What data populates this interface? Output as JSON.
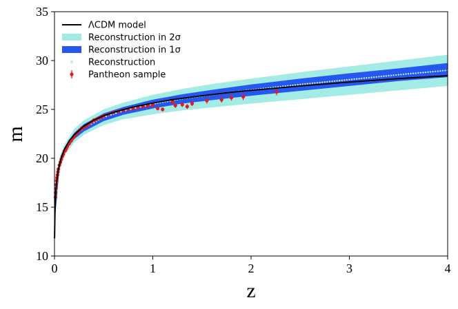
{
  "chart_data": {
    "type": "line",
    "xlabel": "z",
    "ylabel": "m",
    "xlim": [
      0,
      4
    ],
    "ylim": [
      10,
      35
    ],
    "xticks": [
      "0",
      "1",
      "2",
      "3",
      "4"
    ],
    "yticks": [
      "10",
      "15",
      "20",
      "25",
      "30",
      "35"
    ],
    "grid": false,
    "legend_position": "top-left",
    "colors": {
      "model": "#000000",
      "band_2sigma": "#a3ece5",
      "band_1sigma": "#2458f0",
      "reconstruction": "#bfeeee",
      "pantheon": "#e8181c"
    },
    "legend": [
      {
        "key": "model",
        "label": "ΛCDM model",
        "marker": "line"
      },
      {
        "key": "band_2sigma",
        "label": "Reconstruction in 2σ",
        "marker": "patch"
      },
      {
        "key": "band_1sigma",
        "label": "Reconstruction in 1σ",
        "marker": "patch"
      },
      {
        "key": "reconstruction",
        "label": "Reconstruction",
        "marker": "dot"
      },
      {
        "key": "pantheon",
        "label": "Pantheon sample",
        "marker": "errorbar"
      }
    ],
    "series": [
      {
        "name": "ΛCDM model",
        "x": [
          0.001,
          0.005,
          0.01,
          0.02,
          0.04,
          0.07,
          0.1,
          0.15,
          0.2,
          0.3,
          0.4,
          0.5,
          0.6,
          0.8,
          1.0,
          1.2,
          1.5,
          1.8,
          2.0,
          2.5,
          3.0,
          3.5,
          4.0
        ],
        "y": [
          11.8,
          14.5,
          16.0,
          17.4,
          18.9,
          20.1,
          20.9,
          21.8,
          22.4,
          23.3,
          23.9,
          24.35,
          24.7,
          25.25,
          25.65,
          26.0,
          26.4,
          26.75,
          26.95,
          27.4,
          27.8,
          28.15,
          28.45
        ]
      },
      {
        "name": "Reconstruction in 2σ",
        "x": [
          0.0,
          0.05,
          0.1,
          0.2,
          0.3,
          0.5,
          0.7,
          1.0,
          1.3,
          1.6,
          2.0,
          2.5,
          3.0,
          3.5,
          4.0
        ],
        "lower": [
          12.8,
          18.7,
          20.3,
          21.6,
          22.4,
          23.4,
          24.0,
          24.5,
          24.9,
          25.2,
          25.6,
          26.05,
          26.5,
          26.95,
          27.4
        ],
        "upper": [
          15.5,
          20.0,
          21.4,
          23.0,
          23.9,
          25.0,
          25.7,
          26.5,
          27.1,
          27.6,
          28.15,
          28.8,
          29.4,
          30.0,
          30.6
        ]
      },
      {
        "name": "Reconstruction in 1σ",
        "x": [
          0.0,
          0.05,
          0.1,
          0.2,
          0.3,
          0.5,
          0.7,
          1.0,
          1.3,
          1.6,
          2.0,
          2.5,
          3.0,
          3.5,
          4.0
        ],
        "lower": [
          13.3,
          18.9,
          20.6,
          21.95,
          22.75,
          23.8,
          24.45,
          25.1,
          25.6,
          25.95,
          26.4,
          26.9,
          27.4,
          27.9,
          28.3
        ],
        "upper": [
          15.0,
          19.7,
          21.1,
          22.6,
          23.5,
          24.6,
          25.25,
          26.0,
          26.55,
          27.0,
          27.55,
          28.15,
          28.7,
          29.2,
          29.75
        ]
      },
      {
        "name": "Reconstruction",
        "x": [
          0.0,
          0.05,
          0.1,
          0.2,
          0.3,
          0.5,
          0.7,
          1.0,
          1.3,
          1.6,
          2.0,
          2.5,
          3.0,
          3.5,
          4.0
        ],
        "y": [
          14.2,
          19.3,
          20.85,
          22.3,
          23.1,
          24.2,
          24.85,
          25.55,
          26.1,
          26.5,
          27.0,
          27.55,
          28.05,
          28.55,
          29.0
        ]
      },
      {
        "name": "Pantheon sample",
        "x": [
          0.01,
          0.012,
          0.015,
          0.018,
          0.022,
          0.025,
          0.03,
          0.035,
          0.04,
          0.05,
          0.06,
          0.07,
          0.08,
          0.09,
          0.1,
          0.11,
          0.12,
          0.13,
          0.15,
          0.17,
          0.19,
          0.2,
          0.22,
          0.24,
          0.26,
          0.28,
          0.3,
          0.32,
          0.35,
          0.38,
          0.4,
          0.42,
          0.45,
          0.48,
          0.5,
          0.55,
          0.6,
          0.65,
          0.7,
          0.75,
          0.8,
          0.85,
          0.9,
          0.95,
          1.0,
          1.05,
          1.1,
          1.2,
          1.23,
          1.3,
          1.35,
          1.4,
          1.55,
          1.7,
          1.8,
          1.92,
          2.26
        ],
        "y": [
          16.0,
          16.5,
          16.9,
          17.3,
          17.7,
          18.0,
          18.3,
          18.6,
          18.9,
          19.3,
          19.6,
          19.9,
          20.2,
          20.4,
          20.7,
          20.8,
          21.0,
          21.2,
          21.5,
          21.8,
          22.1,
          22.2,
          22.5,
          22.7,
          22.9,
          23.1,
          23.2,
          23.3,
          23.5,
          23.7,
          23.9,
          23.95,
          24.1,
          24.2,
          24.35,
          24.5,
          24.7,
          24.8,
          24.9,
          25.0,
          25.1,
          25.2,
          25.3,
          25.35,
          25.45,
          25.1,
          25.0,
          25.8,
          25.4,
          25.5,
          25.3,
          25.6,
          25.9,
          26.0,
          26.2,
          26.3,
          26.8
        ],
        "error": [
          0.15,
          0.15,
          0.15,
          0.15,
          0.15,
          0.15,
          0.15,
          0.15,
          0.15,
          0.15,
          0.15,
          0.15,
          0.15,
          0.15,
          0.15,
          0.15,
          0.15,
          0.15,
          0.15,
          0.15,
          0.15,
          0.15,
          0.15,
          0.15,
          0.15,
          0.15,
          0.15,
          0.15,
          0.15,
          0.15,
          0.15,
          0.15,
          0.15,
          0.15,
          0.15,
          0.15,
          0.15,
          0.15,
          0.15,
          0.15,
          0.15,
          0.15,
          0.15,
          0.15,
          0.15,
          0.2,
          0.2,
          0.25,
          0.25,
          0.25,
          0.25,
          0.25,
          0.3,
          0.3,
          0.3,
          0.35,
          0.35
        ]
      }
    ]
  }
}
